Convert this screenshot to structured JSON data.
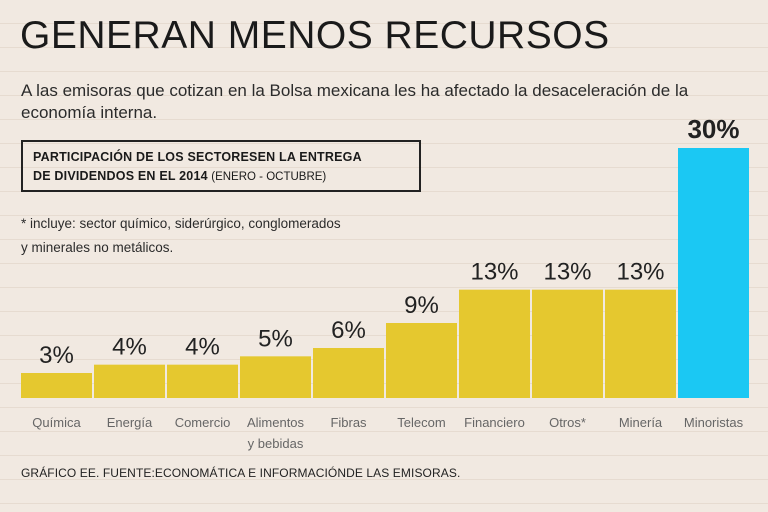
{
  "header": {
    "title": "GENERAN MENOS RECURSOS",
    "subtitle": "A las emisoras que cotizan en la Bolsa mexicana les ha afectado la desaceleración de la economía interna."
  },
  "box": {
    "line1": "PARTICIPACIÓN DE LOS SECTORESEN LA ENTREGA",
    "line2": "DE DIVIDENDOS EN EL 2014",
    "period": "(ENERO - OCTUBRE)"
  },
  "note": "* incluye: sector químico, siderúrgico, conglomerados y minerales no metálicos.",
  "footer": "GRÁFICO EE. FUENTE:ECONOMÁTICA E INFORMACIÓNDE LAS EMISORAS.",
  "colors": {
    "bar": "#e5c82f",
    "highlight": "#1bc8f3",
    "background": "#f1e9e1"
  },
  "chart_data": {
    "type": "bar",
    "title": "PARTICIPACIÓN DE LOS SECTORESEN LA ENTREGA DE DIVIDENDOS EN EL 2014 (ENERO - OCTUBRE)",
    "categories": [
      [
        "Química"
      ],
      [
        "Energía"
      ],
      [
        "Comercio"
      ],
      [
        "Alimentos",
        "y bebidas"
      ],
      [
        "Fibras"
      ],
      [
        "Telecom"
      ],
      [
        "Financiero"
      ],
      [
        "Otros*"
      ],
      [
        "Minería"
      ],
      [
        "Minoristas"
      ]
    ],
    "values": [
      3,
      4,
      4,
      5,
      6,
      9,
      13,
      13,
      13,
      30
    ],
    "labels": [
      "3%",
      "4%",
      "4%",
      "5%",
      "6%",
      "9%",
      "13%",
      "13%",
      "13%",
      "30%"
    ],
    "highlight_index": 9,
    "unit": "%",
    "ylim": [
      0,
      30
    ],
    "xlabel": "",
    "ylabel": ""
  }
}
